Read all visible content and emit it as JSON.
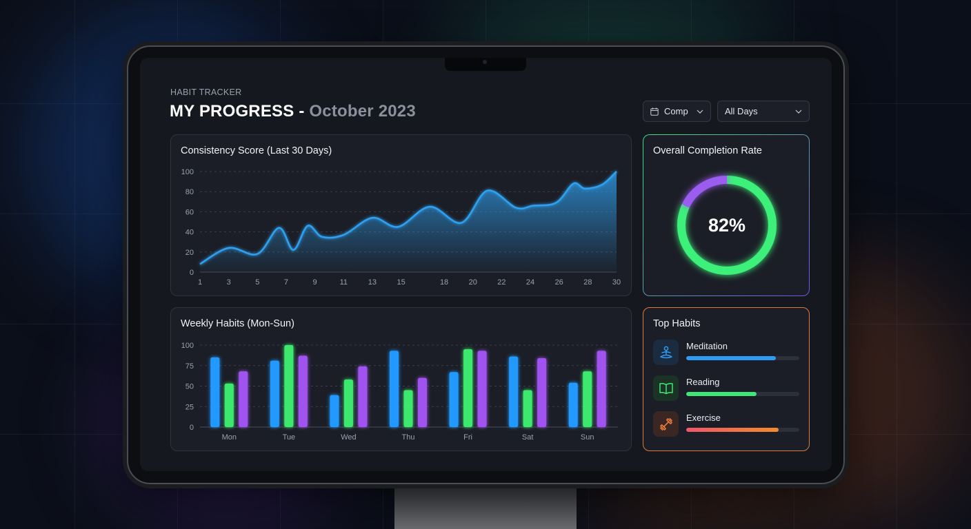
{
  "header": {
    "eyebrow": "HABIT TRACKER",
    "title_main": "MY PROGRESS - ",
    "title_period": "October 2023"
  },
  "filters": {
    "comp_label": "Comp",
    "days_label": "All Days"
  },
  "consistency": {
    "title": "Consistency Score (Last 30 Days)",
    "chart_data": {
      "type": "area",
      "title": "Consistency Score (Last 30 Days)",
      "x_ticks": [
        1,
        3,
        5,
        7,
        9,
        11,
        13,
        15,
        18,
        20,
        22,
        24,
        26,
        28,
        30
      ],
      "y_ticks": [
        0,
        20,
        40,
        60,
        80,
        100
      ],
      "ylim": [
        0,
        100
      ],
      "xlim": [
        1,
        30
      ],
      "grid": true,
      "color": "#2fa0f0",
      "x": [
        1,
        3,
        5,
        6.5,
        7.5,
        8.5,
        9.5,
        11,
        13,
        14.8,
        17,
        19.2,
        21,
        23,
        24.2,
        25.8,
        27,
        27.8,
        29,
        30
      ],
      "y": [
        8,
        24,
        18,
        44,
        22,
        46,
        35,
        37,
        54,
        45,
        65,
        49,
        81,
        64,
        66,
        69,
        88,
        83,
        87,
        100
      ]
    }
  },
  "weekly": {
    "title": "Weekly Habits (Mon-Sun)",
    "chart_data": {
      "type": "bar",
      "title": "Weekly Habits (Mon-Sun)",
      "categories": [
        "Mon",
        "Tue",
        "Wed",
        "Thu",
        "Fri",
        "Sat",
        "Sun"
      ],
      "y_ticks": [
        0,
        25,
        50,
        75,
        100
      ],
      "ylim": [
        0,
        100
      ],
      "grid": true,
      "series": [
        {
          "color": "#2499ff",
          "values": [
            85,
            81,
            39,
            93,
            67,
            86,
            54
          ]
        },
        {
          "color": "#3de86e",
          "values": [
            53,
            100,
            58,
            45,
            95,
            45,
            68
          ]
        },
        {
          "color": "#a152f0",
          "values": [
            68,
            87,
            74,
            60,
            93,
            84,
            93
          ]
        }
      ]
    }
  },
  "completion": {
    "title": "Overall Completion Rate",
    "value_label": "82%",
    "chart_data": {
      "type": "pie",
      "values": [
        82,
        18
      ],
      "colors": [
        "#3ef07a",
        "#9b5bf0"
      ]
    }
  },
  "top_habits": {
    "title": "Top Habits",
    "items": [
      {
        "name": "Meditation",
        "progress": 0.79,
        "icon": "meditation-icon",
        "color": "#2f9cf4",
        "color_end": "#2f9cf4",
        "tile": "#1b2c40"
      },
      {
        "name": "Reading",
        "progress": 0.62,
        "icon": "book-icon",
        "color": "#3ee876",
        "color_end": "#3ee876",
        "tile": "#1b3325"
      },
      {
        "name": "Exercise",
        "progress": 0.82,
        "icon": "dumbbell-icon",
        "color": "#f0566a",
        "color_end": "#f28c2c",
        "tile": "#3a2622"
      }
    ]
  }
}
